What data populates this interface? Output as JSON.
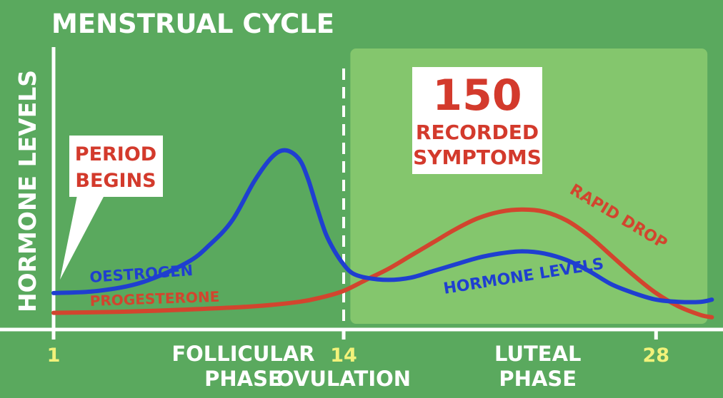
{
  "colors": {
    "background": "#5aa95e",
    "luteal_panel": "#84c66d",
    "axis": "#ffffff",
    "tick_label": "#f2f27a",
    "oestrogen": "#1f3fd0",
    "progesterone": "#d2452e",
    "callout_text": "#d33a2c",
    "callout_bg": "#ffffff"
  },
  "chart_data": {
    "type": "line",
    "title": "MENSTRUAL CYCLE",
    "ylabel": "HORMONE LEVELS",
    "xlabel": "",
    "xlim": [
      1,
      31
    ],
    "ylim": [
      0,
      100
    ],
    "x_ticks": [
      {
        "value": 1,
        "label": "1"
      },
      {
        "value": 14,
        "label": "14"
      },
      {
        "value": 28,
        "label": "28"
      }
    ],
    "phases": [
      {
        "label_line1": "FOLLICULAR",
        "label_line2": "PHASE",
        "center": 9.5
      },
      {
        "label_line1": "LUTEAL",
        "label_line2": "PHASE",
        "center": 22.7
      }
    ],
    "ovulation": {
      "day": 14,
      "label": "OVULATION"
    },
    "luteal_range": [
      14.3,
      30.3
    ],
    "series": [
      {
        "name": "OESTROGEN",
        "color": "#1f3fd0",
        "x": [
          1,
          3,
          5,
          7,
          8,
          9,
          10,
          10.8,
          11.4,
          12,
          12.4,
          12.8,
          13.2,
          13.6,
          14,
          14.4,
          15,
          16,
          17,
          18,
          19,
          20,
          21,
          22,
          23,
          24,
          25,
          26,
          27,
          28,
          29,
          30,
          30.5
        ],
        "values": [
          14,
          15,
          19,
          28,
          36,
          47,
          65,
          76,
          79,
          75,
          66,
          53,
          41,
          33,
          27,
          23,
          21,
          20,
          21,
          24,
          27,
          30,
          32,
          33,
          32,
          29,
          24,
          18,
          14,
          11,
          10,
          10,
          11
        ]
      },
      {
        "name": "PROGESTERONE",
        "color": "#d2452e",
        "x": [
          1,
          4,
          7,
          10,
          12,
          13,
          14,
          15,
          16,
          17,
          18,
          19,
          20,
          21,
          22,
          23,
          24,
          25,
          26,
          27,
          28,
          29,
          30,
          30.5
        ],
        "values": [
          5,
          5.5,
          6.5,
          8,
          10,
          12,
          15,
          20,
          25,
          31,
          37,
          43,
          48,
          51,
          52,
          51,
          47,
          40,
          31,
          22,
          14,
          8,
          4,
          3
        ]
      }
    ],
    "annotations": [
      {
        "id": "period",
        "line1": "PERIOD",
        "line2": "BEGINS"
      },
      {
        "id": "symptoms",
        "number": "150",
        "line1": "RECORDED",
        "line2": "SYMPTOMS"
      },
      {
        "id": "rapid_drop",
        "text": "RAPID DROP"
      },
      {
        "id": "hormone_levels",
        "text": "HORMONE LEVELS"
      },
      {
        "id": "oestrogen_label",
        "text": "OESTROGEN"
      },
      {
        "id": "progesterone_label",
        "text": "PROGESTERONE"
      }
    ]
  }
}
